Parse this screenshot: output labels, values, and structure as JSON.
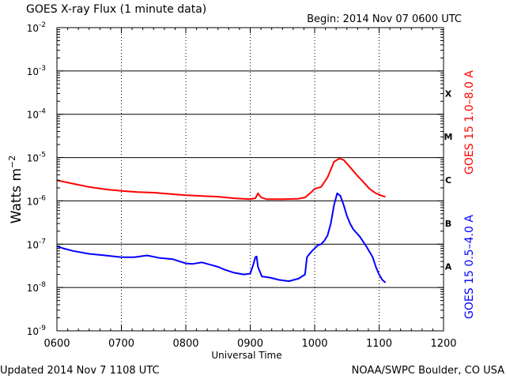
{
  "chart_data": {
    "type": "line",
    "title": "GOES X-ray Flux (1 minute data)",
    "begin_label": "Begin: 2014 Nov 07 0600 UTC",
    "footer_left": "Updated 2014 Nov  7 1108 UTC",
    "footer_right": "NOAA/SWPC Boulder, CO USA",
    "xlabel": "Universal Time",
    "ylabel_base": "Watts m",
    "ylabel_exp": "−2",
    "x_unit": "hours UTC",
    "xlim": [
      6.0,
      12.0
    ],
    "x_ticks": [
      {
        "value": 6,
        "label": "0600"
      },
      {
        "value": 7,
        "label": "0700"
      },
      {
        "value": 8,
        "label": "0800"
      },
      {
        "value": 9,
        "label": "0900"
      },
      {
        "value": 10,
        "label": "1000"
      },
      {
        "value": 11,
        "label": "1100"
      },
      {
        "value": 12,
        "label": "1200"
      }
    ],
    "y_scale": "log",
    "ylim": [
      1e-09,
      0.01
    ],
    "y_ticks": [
      {
        "value": 0.01,
        "exp": "-2"
      },
      {
        "value": 0.001,
        "exp": "-3"
      },
      {
        "value": 0.0001,
        "exp": "-4"
      },
      {
        "value": 1e-05,
        "exp": "-5"
      },
      {
        "value": 1e-06,
        "exp": "-6"
      },
      {
        "value": 1e-07,
        "exp": "-7"
      },
      {
        "value": 1e-08,
        "exp": "-8"
      },
      {
        "value": 1e-09,
        "exp": "-9"
      }
    ],
    "y_tick_base": "10",
    "grid": {
      "horizontal": true,
      "vertical": "dotted"
    },
    "flare_classes": [
      {
        "label": "X",
        "low": 0.0001,
        "high": 0.001
      },
      {
        "label": "M",
        "low": 1e-05,
        "high": 0.0001
      },
      {
        "label": "C",
        "low": 1e-06,
        "high": 1e-05
      },
      {
        "label": "B",
        "low": 1e-07,
        "high": 1e-06
      },
      {
        "label": "A",
        "low": 1e-08,
        "high": 1e-07
      }
    ],
    "series": [
      {
        "name": "GOES 15 1.0–8.0 A",
        "color": "#ff0000",
        "points": [
          [
            6.0,
            3e-06
          ],
          [
            6.25,
            2.5e-06
          ],
          [
            6.5,
            2.1e-06
          ],
          [
            6.75,
            1.85e-06
          ],
          [
            7.0,
            1.7e-06
          ],
          [
            7.25,
            1.6e-06
          ],
          [
            7.5,
            1.55e-06
          ],
          [
            7.75,
            1.45e-06
          ],
          [
            8.0,
            1.35e-06
          ],
          [
            8.25,
            1.3e-06
          ],
          [
            8.5,
            1.25e-06
          ],
          [
            8.75,
            1.15e-06
          ],
          [
            9.0,
            1.1e-06
          ],
          [
            9.08,
            1.15e-06
          ],
          [
            9.12,
            1.5e-06
          ],
          [
            9.17,
            1.2e-06
          ],
          [
            9.25,
            1.1e-06
          ],
          [
            9.5,
            1.1e-06
          ],
          [
            9.75,
            1.12e-06
          ],
          [
            9.85,
            1.2e-06
          ],
          [
            9.95,
            1.6e-06
          ],
          [
            10.0,
            1.9e-06
          ],
          [
            10.1,
            2.1e-06
          ],
          [
            10.2,
            3.5e-06
          ],
          [
            10.3,
            8e-06
          ],
          [
            10.38,
            9.5e-06
          ],
          [
            10.45,
            8.8e-06
          ],
          [
            10.55,
            6e-06
          ],
          [
            10.65,
            4e-06
          ],
          [
            10.75,
            2.8e-06
          ],
          [
            10.85,
            1.9e-06
          ],
          [
            10.95,
            1.5e-06
          ],
          [
            11.05,
            1.3e-06
          ],
          [
            11.1,
            1.25e-06
          ]
        ]
      },
      {
        "name": "GOES 15 0.5–4.0 A",
        "color": "#0000ff",
        "points": [
          [
            6.0,
            9e-08
          ],
          [
            6.1,
            8e-08
          ],
          [
            6.25,
            7e-08
          ],
          [
            6.5,
            6e-08
          ],
          [
            6.75,
            5.5e-08
          ],
          [
            7.0,
            5e-08
          ],
          [
            7.2,
            5e-08
          ],
          [
            7.4,
            5.5e-08
          ],
          [
            7.6,
            4.8e-08
          ],
          [
            7.8,
            4.5e-08
          ],
          [
            8.0,
            3.6e-08
          ],
          [
            8.1,
            3.5e-08
          ],
          [
            8.25,
            3.8e-08
          ],
          [
            8.4,
            3.3e-08
          ],
          [
            8.5,
            3e-08
          ],
          [
            8.6,
            2.6e-08
          ],
          [
            8.75,
            2.2e-08
          ],
          [
            8.9,
            2e-08
          ],
          [
            9.0,
            2.1e-08
          ],
          [
            9.05,
            3.5e-08
          ],
          [
            9.08,
            5e-08
          ],
          [
            9.1,
            5.2e-08
          ],
          [
            9.12,
            3e-08
          ],
          [
            9.18,
            1.8e-08
          ],
          [
            9.3,
            1.7e-08
          ],
          [
            9.45,
            1.5e-08
          ],
          [
            9.6,
            1.4e-08
          ],
          [
            9.75,
            1.6e-08
          ],
          [
            9.85,
            2e-08
          ],
          [
            9.88,
            5e-08
          ],
          [
            9.92,
            6e-08
          ],
          [
            9.96,
            7e-08
          ],
          [
            10.0,
            8e-08
          ],
          [
            10.05,
            9.5e-08
          ],
          [
            10.1,
            1e-07
          ],
          [
            10.15,
            1.2e-07
          ],
          [
            10.2,
            1.6e-07
          ],
          [
            10.25,
            3e-07
          ],
          [
            10.3,
            8e-07
          ],
          [
            10.35,
            1.5e-06
          ],
          [
            10.4,
            1.3e-06
          ],
          [
            10.45,
            8e-07
          ],
          [
            10.5,
            4.5e-07
          ],
          [
            10.55,
            3e-07
          ],
          [
            10.6,
            2.2e-07
          ],
          [
            10.7,
            1.5e-07
          ],
          [
            10.8,
            9e-08
          ],
          [
            10.9,
            5e-08
          ],
          [
            10.95,
            3e-08
          ],
          [
            11.0,
            2e-08
          ],
          [
            11.05,
            1.5e-08
          ],
          [
            11.1,
            1.3e-08
          ]
        ]
      }
    ]
  }
}
